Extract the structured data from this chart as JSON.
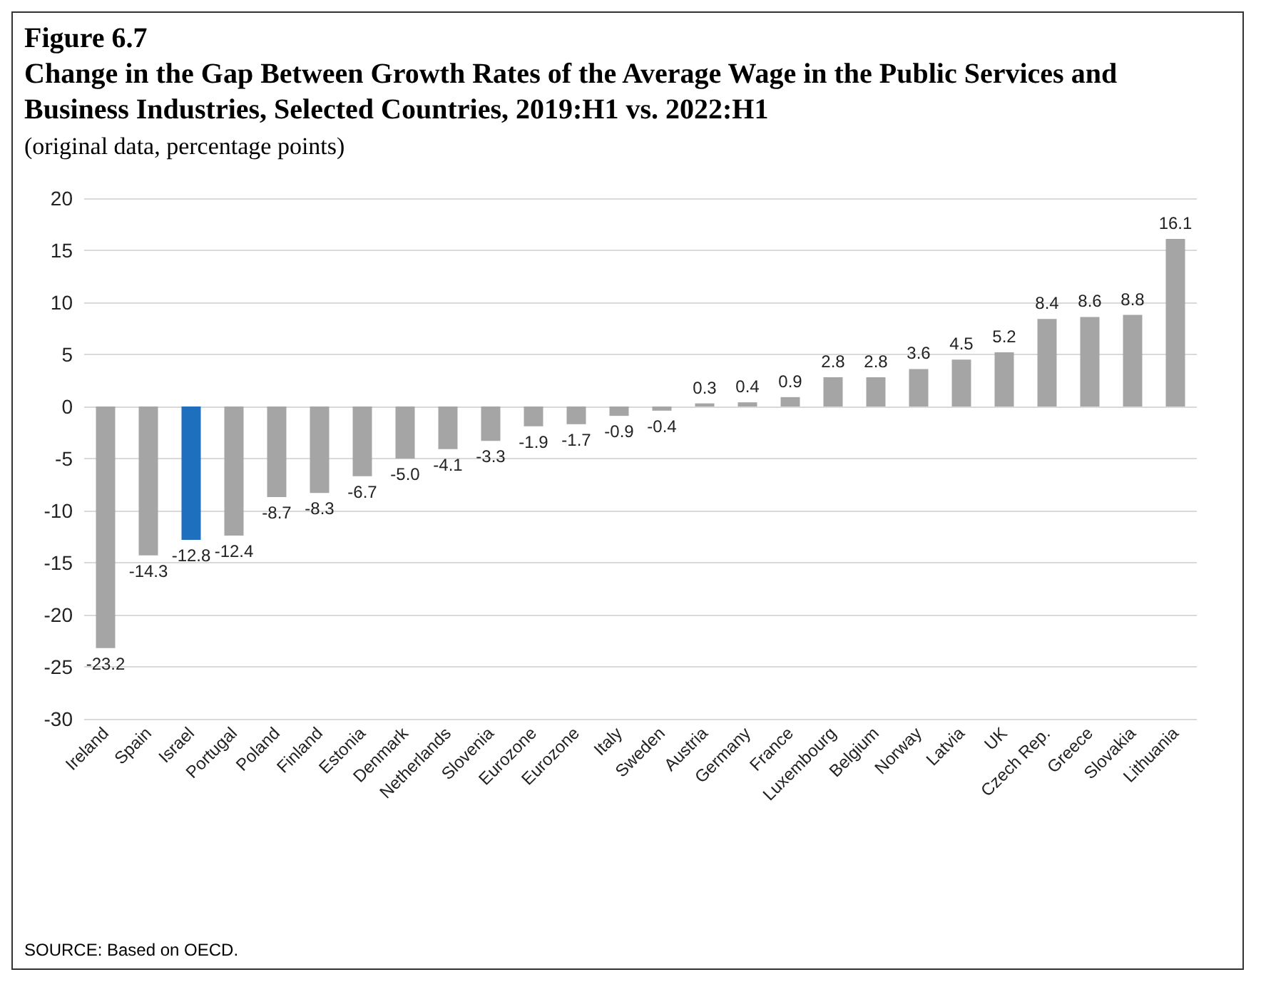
{
  "chart_data": {
    "type": "bar",
    "title": "Figure 6.7",
    "subtitle": "Change in the Gap Between Growth Rates of the Average Wage in the Public Services and Business Industries, Selected Countries, 2019:H1 vs. 2022:H1",
    "annotations": [
      "(original data, percentage points)",
      "SOURCE: Based on OECD."
    ],
    "categories": [
      "Ireland",
      "Spain",
      "Israel",
      "Portugal",
      "Poland",
      "Finland",
      "Estonia",
      "Denmark",
      "Netherlands",
      "Slovenia",
      "Eurozone",
      "Eurozone",
      "Italy",
      "Sweden",
      "Austria",
      "Germany",
      "France",
      "Luxembourg",
      "Belgium",
      "Norway",
      "Latvia",
      "UK",
      "Czech Rep.",
      "Greece",
      "Slovakia",
      "Lithuania"
    ],
    "values": [
      -23.2,
      -14.3,
      -12.8,
      -12.4,
      -8.7,
      -8.3,
      -6.7,
      -5.0,
      -4.1,
      -3.3,
      -1.9,
      -1.7,
      -0.9,
      -0.4,
      0.3,
      0.4,
      0.9,
      2.8,
      2.8,
      3.6,
      4.5,
      5.2,
      8.4,
      8.6,
      8.8,
      16.1
    ],
    "value_labels": [
      "-23.2",
      "-14.3",
      "-12.8",
      "-12.4",
      "-8.7",
      "-8.3",
      "-6.7",
      "-5.0",
      "-4.1",
      "-3.3",
      "-1.9",
      "-1.7",
      "-0.9",
      "-0.4",
      "0.3",
      "0.4",
      "0.9",
      "2.8",
      "2.8",
      "3.6",
      "4.5",
      "5.2",
      "8.4",
      "8.6",
      "8.8",
      "16.1"
    ],
    "colors": [
      "#a5a5a5",
      "#a5a5a5",
      "#1f6fbf",
      "#a5a5a5",
      "#a5a5a5",
      "#a5a5a5",
      "#a5a5a5",
      "#a5a5a5",
      "#a5a5a5",
      "#a5a5a5",
      "#a5a5a5",
      "#a5a5a5",
      "#a5a5a5",
      "#a5a5a5",
      "#a5a5a5",
      "#a5a5a5",
      "#a5a5a5",
      "#a5a5a5",
      "#a5a5a5",
      "#a5a5a5",
      "#a5a5a5",
      "#a5a5a5",
      "#a5a5a5",
      "#a5a5a5",
      "#a5a5a5",
      "#a5a5a5"
    ],
    "ylim": [
      -30,
      20
    ],
    "yticks": [
      -30,
      -25,
      -20,
      -15,
      -10,
      -5,
      0,
      5,
      10,
      15,
      20
    ],
    "grid": true
  }
}
